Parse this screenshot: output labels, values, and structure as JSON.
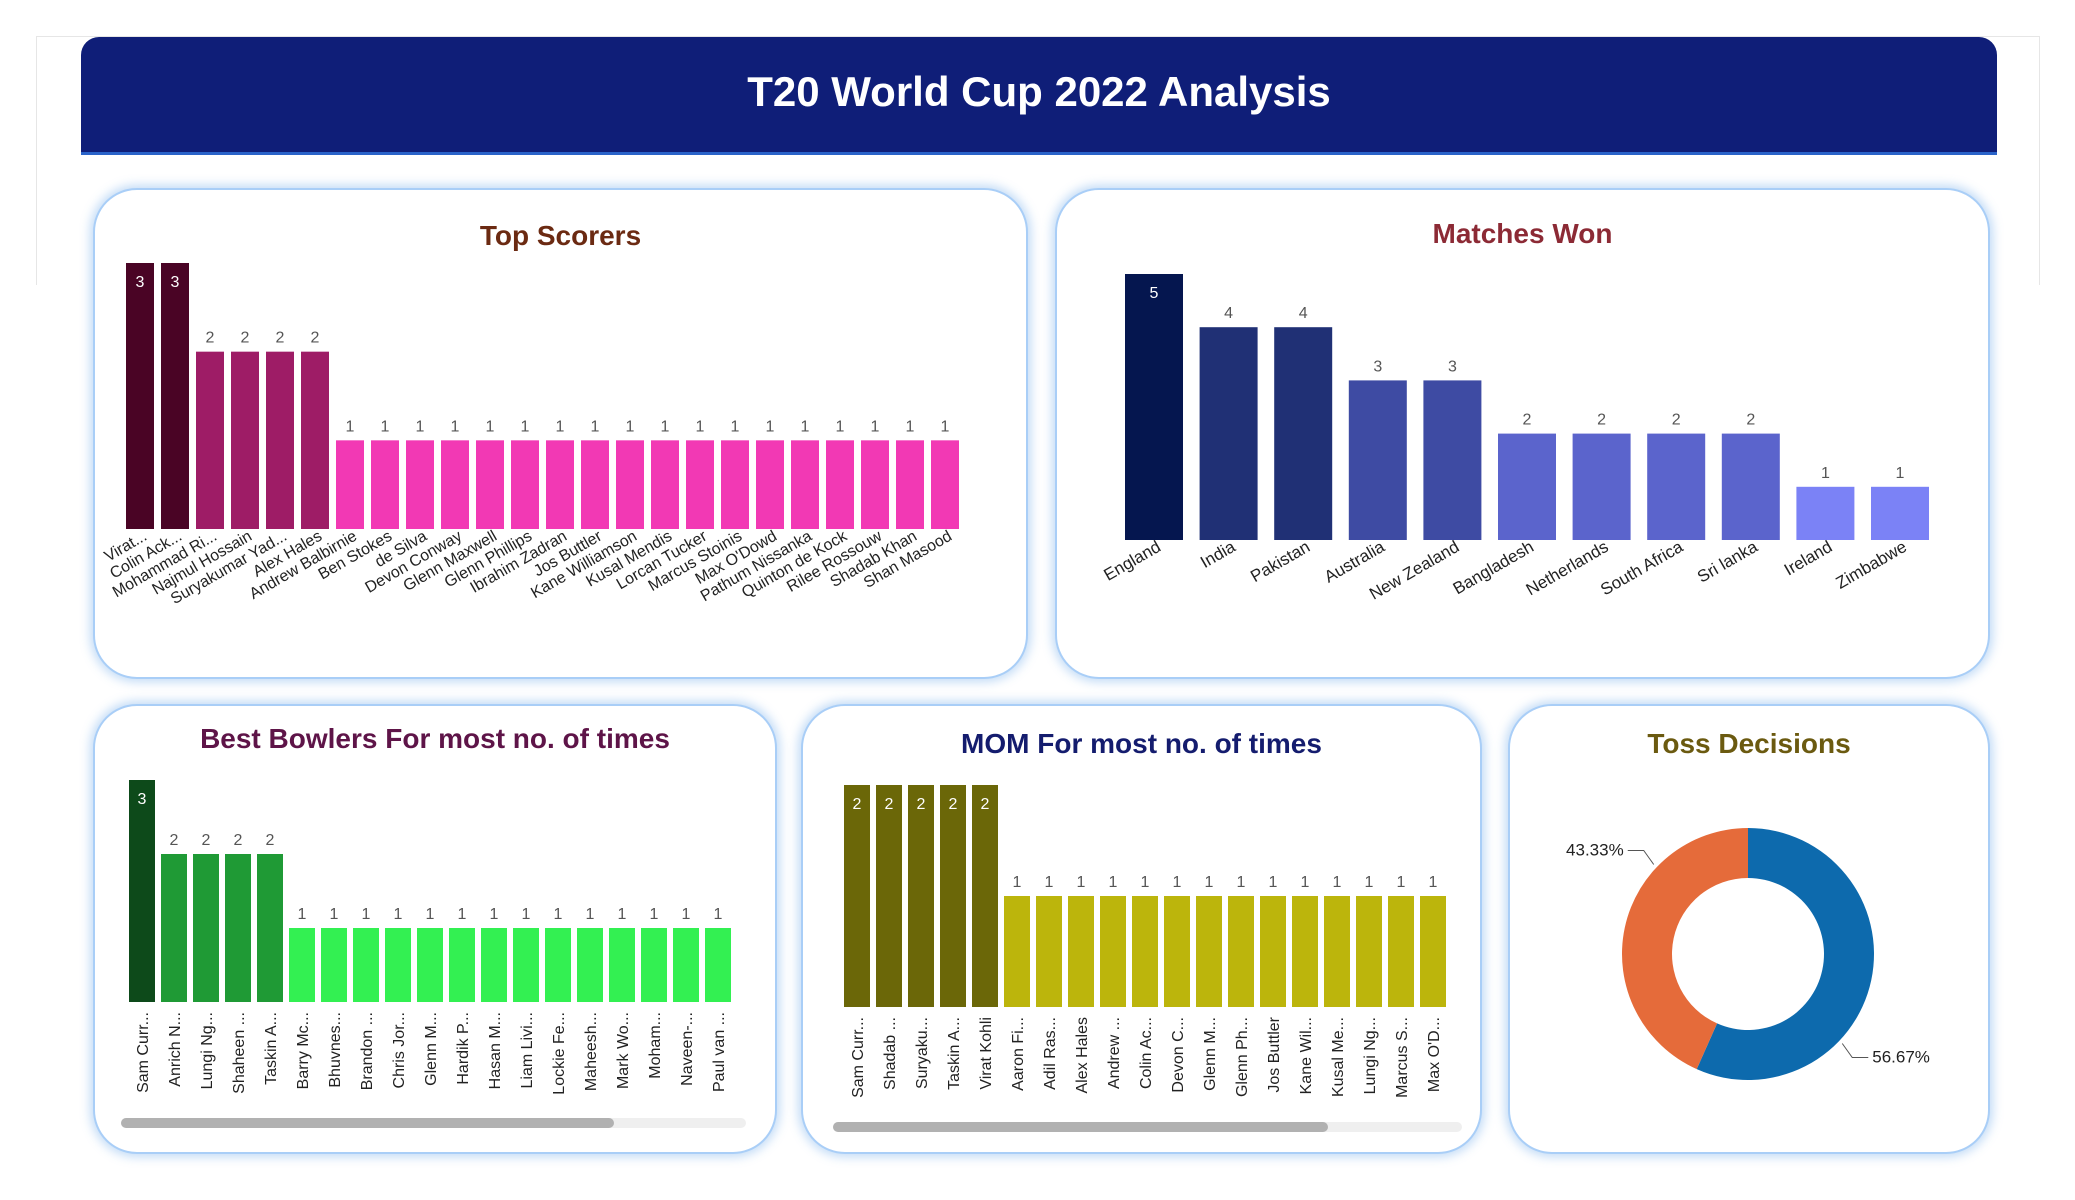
{
  "header": {
    "title": "T20 World Cup 2022 Analysis"
  },
  "cards": {
    "top_scorers": {
      "title": "Top Scorers",
      "title_color": "#6b2a12"
    },
    "matches_won": {
      "title": "Matches Won",
      "title_color": "#8c2a35"
    },
    "best_bowlers": {
      "title": "Best Bowlers For most no. of times",
      "title_color": "#5e1448"
    },
    "mom": {
      "title": "MOM For most no. of times",
      "title_color": "#141c6e"
    },
    "toss": {
      "title": "Toss Decisions",
      "title_color": "#6b5a10"
    }
  },
  "chart_data": [
    {
      "id": "top_scorers",
      "type": "bar",
      "categories": [
        "Virat...",
        "Colin Ack...",
        "Mohammad Ri...",
        "Najmul Hossain",
        "Suryakumar Yad...",
        "Alex Hales",
        "Andrew Balbirnie",
        "Ben Stokes",
        "de Silva",
        "Devon Conway",
        "Glenn Maxwell",
        "Glenn Phillips",
        "Ibrahim Zadran",
        "Jos Buttler",
        "Kane Williamson",
        "Kusal Mendis",
        "Lorcan Tucker",
        "Marcus Stoinis",
        "Max O'Dowd",
        "Pathum Nissanka",
        "Quinton de Kock",
        "Rilee Rossouw",
        "Shadab Khan",
        "Shan Masood"
      ],
      "values": [
        3,
        3,
        2,
        2,
        2,
        2,
        1,
        1,
        1,
        1,
        1,
        1,
        1,
        1,
        1,
        1,
        1,
        1,
        1,
        1,
        1,
        1,
        1,
        1
      ],
      "ylim": [
        0,
        3
      ],
      "colors": {
        "3": "#4a0425",
        "2": "#9e1c66",
        "1": "#f239b4"
      }
    },
    {
      "id": "matches_won",
      "type": "bar",
      "categories": [
        "England",
        "India",
        "Pakistan",
        "Australia",
        "New Zealand",
        "Bangladesh",
        "Netherlands",
        "South Africa",
        "Sri lanka",
        "Ireland",
        "Zimbabwe"
      ],
      "values": [
        5,
        4,
        4,
        3,
        3,
        2,
        2,
        2,
        2,
        1,
        1
      ],
      "ylim": [
        0,
        5
      ],
      "colors": {
        "5": "#05164f",
        "4": "#203075",
        "3": "#3e4ba3",
        "2": "#5b64cc",
        "1": "#7b82f6"
      }
    },
    {
      "id": "best_bowlers",
      "type": "bar",
      "categories": [
        "Sam Curr...",
        "Anrich N...",
        "Lungi Ng...",
        "Shaheen ...",
        "Taskin A...",
        "Barry Mc...",
        "Bhuvnes...",
        "Brandon ...",
        "Chris Jor...",
        "Glenn M...",
        "Hardik P...",
        "Hasan M...",
        "Liam Livi...",
        "Lockie Fe...",
        "Maheesh...",
        "Mark Wo...",
        "Moham...",
        "Naveen-...",
        "Paul van ..."
      ],
      "values": [
        3,
        2,
        2,
        2,
        2,
        1,
        1,
        1,
        1,
        1,
        1,
        1,
        1,
        1,
        1,
        1,
        1,
        1,
        1
      ],
      "ylim": [
        0,
        3
      ],
      "colors": {
        "3": "#0d4a1a",
        "2": "#1f9a35",
        "1": "#33f052"
      }
    },
    {
      "id": "mom",
      "type": "bar",
      "categories": [
        "Sam Curr...",
        "Shadab ...",
        "Suryaku...",
        "Taskin A...",
        "Virat Kohli",
        "Aaron Fi...",
        "Adil Ras...",
        "Alex Hales",
        "Andrew ...",
        "Colin Ac...",
        "Devon C...",
        "Glenn M...",
        "Glenn Ph...",
        "Jos Buttler",
        "Kane Wil...",
        "Kusal Me...",
        "Lungi Ng...",
        "Marcus S...",
        "Max O'D..."
      ],
      "values": [
        2,
        2,
        2,
        2,
        2,
        1,
        1,
        1,
        1,
        1,
        1,
        1,
        1,
        1,
        1,
        1,
        1,
        1,
        1
      ],
      "ylim": [
        0,
        2
      ],
      "colors": {
        "2": "#6b6708",
        "1": "#bcb50c"
      }
    },
    {
      "id": "toss",
      "type": "pie",
      "slices": [
        {
          "value": 56.67,
          "label": "56.67%",
          "color": "#0d6aad"
        },
        {
          "value": 43.33,
          "label": "43.33%",
          "color": "#e56b3a"
        }
      ]
    }
  ]
}
